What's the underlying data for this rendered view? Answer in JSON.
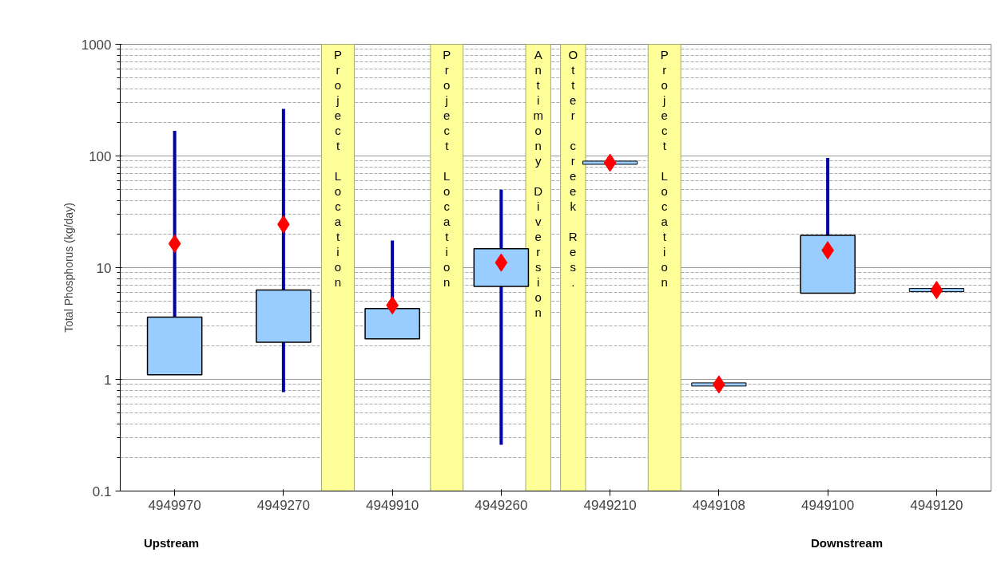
{
  "chart_data": {
    "type": "box",
    "ylabel": "Total Phosphorus (kg/day)",
    "categories": [
      "4949970",
      "4949270",
      "4949910",
      "4949260",
      "4949210",
      "4949108",
      "4949100",
      "4949120"
    ],
    "log": true,
    "ylim": [
      0.1,
      1000
    ],
    "yticks": [
      0.1,
      1,
      10,
      100,
      1000
    ],
    "grid": "y",
    "series": [
      {
        "color": "#99ccff",
        "boxes": [
          {
            "low": 1.1,
            "q1": 1.1,
            "q3": 3.6,
            "high": 168
          },
          {
            "low": 0.77,
            "q1": 2.15,
            "q3": 6.3,
            "high": 264
          },
          {
            "low": 2.3,
            "q1": 2.3,
            "q3": 4.3,
            "high": 17.5
          },
          {
            "low": 0.26,
            "q1": 6.8,
            "q3": 14.8,
            "high": 50
          },
          {
            "low": 87,
            "q1": 87,
            "q3": 87,
            "high": 87
          },
          {
            "low": 0.9,
            "q1": 0.9,
            "q3": 0.9,
            "high": 0.9
          },
          {
            "low": 5.9,
            "q1": 5.9,
            "q3": 19.5,
            "high": 96
          },
          {
            "low": 6.3,
            "q1": 6.3,
            "q3": 6.3,
            "high": 6.3
          }
        ]
      },
      {
        "type": "scatter",
        "color": "#ff0000",
        "marker": "diamond",
        "x": [
          "4949970",
          "4949270",
          "4949910",
          "4949260",
          "4949210",
          "4949108",
          "4949100",
          "4949120"
        ],
        "values": [
          16.4,
          24.4,
          4.6,
          11.1,
          87,
          0.9,
          14.3,
          6.3
        ]
      }
    ],
    "bands": [
      {
        "axis": "x",
        "from": "4949270",
        "to": "4949910",
        "label": "Project Location",
        "color": "#ffff99"
      },
      {
        "axis": "x",
        "from": "4949910",
        "to": "4949260",
        "label": "Project Location",
        "color": "#ffff99"
      },
      {
        "axis": "x",
        "from": "4949260",
        "to": "4949210",
        "label": "Antimony Diversion",
        "color": "#ffff99"
      },
      {
        "axis": "x",
        "from": "4949260",
        "to": "4949210",
        "label": "Otter creek Res.",
        "color": "#ffff99"
      },
      {
        "axis": "x",
        "from": "4949210",
        "to": "4949108",
        "label": "Project Location",
        "color": "#ffff99"
      }
    ],
    "annotations": [
      "Upstream",
      "Downstream"
    ]
  }
}
